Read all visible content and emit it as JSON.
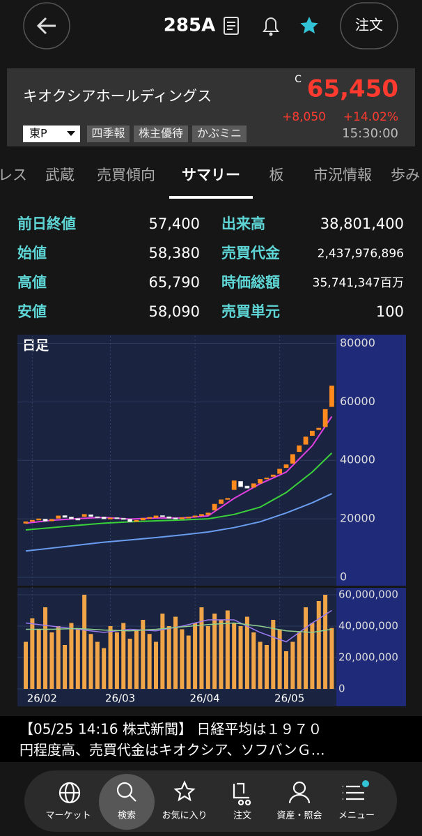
{
  "header": {
    "ticker": "285A",
    "order_button": "注文"
  },
  "quote": {
    "name": "キオクシアホールディングス",
    "flag": "C",
    "price": "65,450",
    "change": "+8,050",
    "change_pct": "+14.02%",
    "time": "15:30:00",
    "market": "東P",
    "tags": [
      "四季報",
      "株主優待",
      "かぶミニ"
    ]
  },
  "tabs": {
    "items": [
      "レス",
      "武蔵",
      "売買傾向",
      "サマリー",
      "板",
      "市況情報",
      "歩み"
    ],
    "active": 3
  },
  "stats": {
    "rows": [
      [
        "前日終値",
        "57,400",
        "出来高",
        "38,801,400"
      ],
      [
        "始値",
        "58,380",
        "売買代金",
        "2,437,976,896"
      ],
      [
        "高値",
        "65,790",
        "時価総額",
        "35,741,347百万"
      ],
      [
        "安値",
        "58,090",
        "売買単元",
        "100"
      ]
    ]
  },
  "chart_data": {
    "type": "candlestick",
    "label": "日足",
    "open": [
      18500,
      19200,
      19600,
      19900,
      19300,
      20200,
      21100,
      20600,
      20100,
      20800,
      21400,
      20700,
      20600,
      20100,
      20400,
      20200,
      19900,
      19100,
      19600,
      20300,
      20400,
      21100,
      20700,
      20300,
      20000,
      20500,
      20700,
      21100,
      21400,
      23000,
      25200,
      26800,
      30000,
      32800,
      31200,
      30800,
      32200,
      33800,
      34500,
      35500,
      37500,
      39000,
      43000,
      45500,
      48500,
      50500,
      51500,
      58380
    ],
    "close": [
      19000,
      19500,
      20000,
      19200,
      19800,
      21000,
      20500,
      20000,
      19600,
      21500,
      20800,
      20500,
      20000,
      20300,
      20100,
      19800,
      19000,
      19500,
      20200,
      20500,
      21000,
      20800,
      20200,
      20000,
      20400,
      20600,
      21000,
      21500,
      22000,
      25000,
      26500,
      27000,
      33000,
      31000,
      30500,
      32000,
      33500,
      34000,
      35000,
      37000,
      38500,
      42000,
      45000,
      48000,
      50000,
      51000,
      57400,
      65450
    ],
    "up_color": "#ff8a1e",
    "down_color": "#ffffff",
    "ylim": [
      0,
      82500
    ],
    "yticks": [
      0,
      20000,
      40000,
      60000,
      80000
    ],
    "xticks": [
      {
        "value": 1,
        "label": "26/02"
      },
      {
        "value": 13,
        "label": "26/03"
      },
      {
        "value": 26,
        "label": "26/04"
      },
      {
        "value": 39,
        "label": "26/05"
      }
    ],
    "ma": [
      {
        "color": "#e040e0",
        "x": [
          0,
          4,
          8,
          12,
          16,
          20,
          24,
          28,
          32,
          36,
          40,
          44,
          47
        ],
        "values": [
          18500,
          19500,
          20100,
          20500,
          19900,
          20300,
          20300,
          21000,
          27000,
          32000,
          36000,
          45000,
          55000
        ]
      },
      {
        "color": "#3ad13a",
        "x": [
          0,
          4,
          8,
          12,
          16,
          20,
          24,
          28,
          32,
          36,
          40,
          44,
          47
        ],
        "values": [
          16200,
          17000,
          17800,
          18500,
          19000,
          19300,
          19600,
          20000,
          21500,
          24000,
          29000,
          36000,
          42500
        ]
      },
      {
        "color": "#6a9df0",
        "x": [
          0,
          4,
          8,
          12,
          16,
          20,
          24,
          28,
          32,
          36,
          40,
          44,
          47
        ],
        "values": [
          9000,
          10000,
          11000,
          12000,
          12800,
          13600,
          14500,
          15500,
          17000,
          19000,
          22000,
          25500,
          28600
        ]
      }
    ],
    "volume": {
      "color": "#f0a548",
      "values": [
        30000000,
        45000000,
        38000000,
        52000000,
        36000000,
        40000000,
        28000000,
        42000000,
        38000000,
        60000000,
        35000000,
        30000000,
        26000000,
        40000000,
        36000000,
        42000000,
        32000000,
        38000000,
        44000000,
        35000000,
        30000000,
        48000000,
        40000000,
        46000000,
        38000000,
        34000000,
        42000000,
        52000000,
        40000000,
        48000000,
        44000000,
        50000000,
        42000000,
        40000000,
        46000000,
        36000000,
        30000000,
        28000000,
        44000000,
        38000000,
        24000000,
        30000000,
        36000000,
        52000000,
        42000000,
        56000000,
        60000000,
        38801400
      ],
      "ylim": [
        0,
        64000000
      ],
      "yticks": [
        0,
        {
          "value": 20000000,
          "label": "20,000,000"
        },
        {
          "value": 40000000,
          "label": "40,000,000"
        },
        {
          "value": 60000000,
          "label": "60,000,000"
        }
      ],
      "ma": [
        {
          "color": "#9a7af0",
          "x": [
            0,
            4,
            8,
            12,
            16,
            20,
            24,
            28,
            32,
            36,
            40,
            44,
            47
          ],
          "values": [
            42000000,
            40000000,
            38000000,
            36000000,
            38000000,
            37000000,
            40000000,
            44000000,
            44000000,
            36000000,
            30000000,
            42000000,
            50000000
          ]
        },
        {
          "color": "#8fd08f",
          "x": [
            0,
            4,
            8,
            12,
            16,
            20,
            24,
            28,
            32,
            36,
            40,
            44,
            47
          ],
          "values": [
            38000000,
            38000000,
            38500000,
            37500000,
            37000000,
            38000000,
            39500000,
            41000000,
            42000000,
            40000000,
            37000000,
            36000000,
            38000000
          ]
        }
      ]
    }
  },
  "news": {
    "lines": [
      "【05/25 14:16 株式新聞】 日経平均は１９７０",
      "円程度高、売買代金はキオクシア、ソフバンＧ…"
    ]
  },
  "nav": {
    "items": [
      "マーケット",
      "検索",
      "お気に入り",
      "注文",
      "資産・照会",
      "メニュー"
    ],
    "active": 1
  }
}
